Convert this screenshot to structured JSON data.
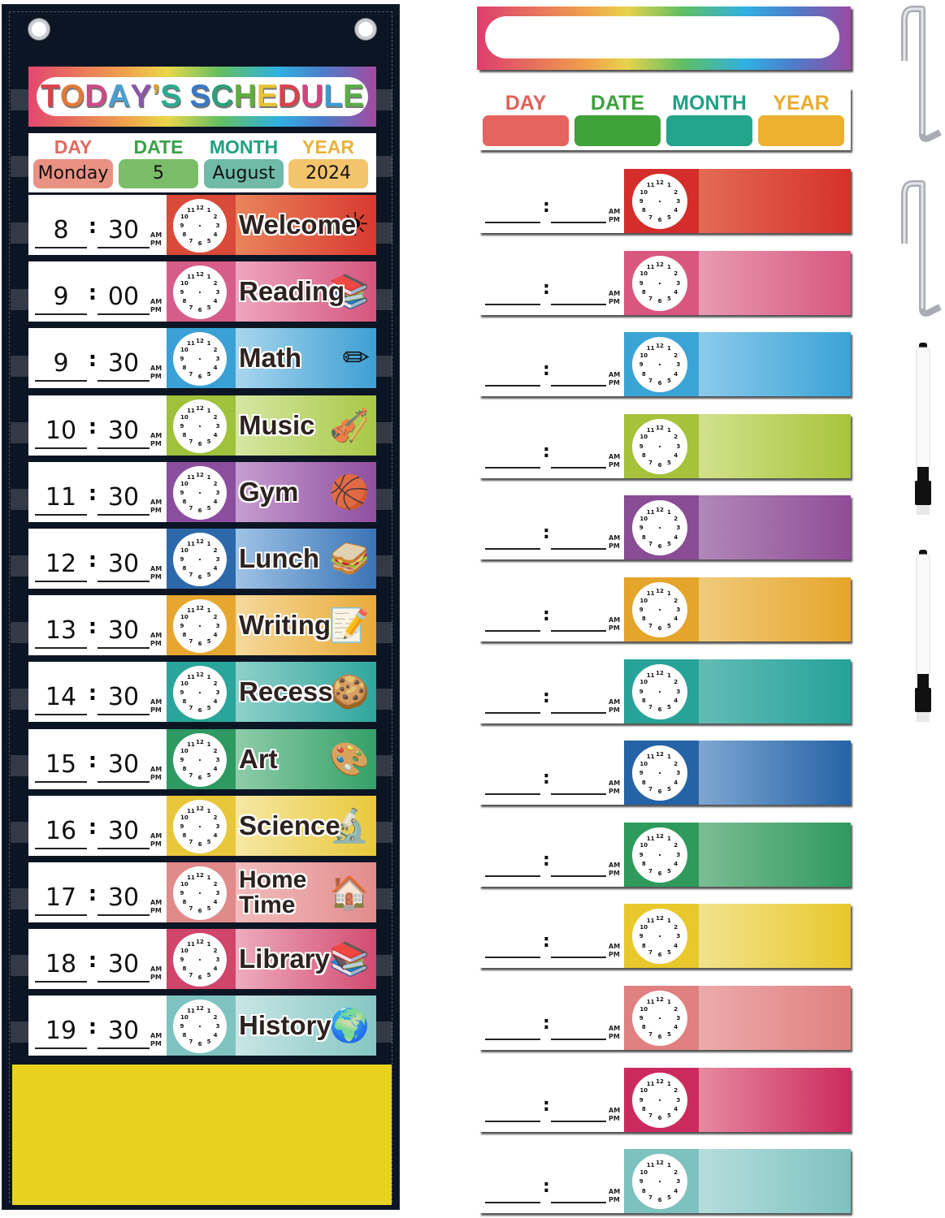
{
  "title_card": {
    "letters": [
      {
        "ch": "T",
        "color": "#d6434c"
      },
      {
        "ch": "O",
        "color": "#e07a3a"
      },
      {
        "ch": "D",
        "color": "#c94c86"
      },
      {
        "ch": "A",
        "color": "#4c9fcf"
      },
      {
        "ch": "Y",
        "color": "#8b56a5"
      },
      {
        "ch": "’",
        "color": "#d8a23a"
      },
      {
        "ch": "S",
        "color": "#2eaa8f"
      },
      {
        "ch": " ",
        "color": "#000"
      },
      {
        "ch": "S",
        "color": "#3b78c4"
      },
      {
        "ch": "C",
        "color": "#2e9d7b"
      },
      {
        "ch": "H",
        "color": "#5fae3b"
      },
      {
        "ch": "E",
        "color": "#e5c33a"
      },
      {
        "ch": "D",
        "color": "#d6434c"
      },
      {
        "ch": "U",
        "color": "#d0457f"
      },
      {
        "ch": "L",
        "color": "#3d9ad0"
      },
      {
        "ch": "E",
        "color": "#5aad4a"
      }
    ],
    "text": "TODAY'S SCHEDULE"
  },
  "date_card": {
    "columns": [
      {
        "label": "DAY",
        "value": "Monday",
        "label_color": "#e06a61",
        "box_color": "#e99182"
      },
      {
        "label": "DATE",
        "value": "5",
        "label_color": "#3aa04a",
        "box_color": "#7bbd69"
      },
      {
        "label": "MONTH",
        "value": "August",
        "label_color": "#21a083",
        "box_color": "#6fbba8"
      },
      {
        "label": "YEAR",
        "value": "2024",
        "label_color": "#eab23b",
        "box_color": "#f2c46b"
      }
    ]
  },
  "ampm": {
    "am": "AM",
    "pm": "PM"
  },
  "schedule": [
    {
      "hour": "8",
      "minute": "30",
      "activity": "Welcome",
      "clock_bg": "#d94a38",
      "grad_from": "#e9845c",
      "grad_to": "#d9392f",
      "icon": "☀"
    },
    {
      "hour": "9",
      "minute": "00",
      "activity": "Reading",
      "clock_bg": "#d65d8a",
      "grad_from": "#eea6bf",
      "grad_to": "#d4557e",
      "icon": "📚"
    },
    {
      "hour": "9",
      "minute": "30",
      "activity": "Math",
      "clock_bg": "#3aa1d6",
      "grad_from": "#a8d6ee",
      "grad_to": "#3e9fd3",
      "icon": "✏"
    },
    {
      "hour": "10",
      "minute": "30",
      "activity": "Music",
      "clock_bg": "#9fc13b",
      "grad_from": "#d6e7a3",
      "grad_to": "#a8c846",
      "icon": "🎻"
    },
    {
      "hour": "11",
      "minute": "30",
      "activity": "Gym",
      "clock_bg": "#8b4e9e",
      "grad_from": "#c69ed0",
      "grad_to": "#8f4f9f",
      "icon": "🏀"
    },
    {
      "hour": "12",
      "minute": "30",
      "activity": "Lunch",
      "clock_bg": "#2d69aa",
      "grad_from": "#9fc3e6",
      "grad_to": "#3a74b6",
      "icon": "🥪"
    },
    {
      "hour": "13",
      "minute": "30",
      "activity": "Writing",
      "clock_bg": "#e6a630",
      "grad_from": "#f6d99b",
      "grad_to": "#e8ab39",
      "icon": "📝"
    },
    {
      "hour": "14",
      "minute": "30",
      "activity": "Recess",
      "clock_bg": "#2aa59b",
      "grad_from": "#8fd0ca",
      "grad_to": "#2fa69d",
      "icon": "🍪"
    },
    {
      "hour": "15",
      "minute": "30",
      "activity": "Art",
      "clock_bg": "#2e9a62",
      "grad_from": "#8fcda9",
      "grad_to": "#34a068",
      "icon": "🎨"
    },
    {
      "hour": "16",
      "minute": "30",
      "activity": "Science",
      "clock_bg": "#e8c83a",
      "grad_from": "#f6e8a5",
      "grad_to": "#e8c83a",
      "icon": "🔬"
    },
    {
      "hour": "17",
      "minute": "30",
      "activity": "Home\nTime",
      "clock_bg": "#e08a8a",
      "grad_from": "#f2bcbc",
      "grad_to": "#e28c8c",
      "icon": "🏠"
    },
    {
      "hour": "18",
      "minute": "30",
      "activity": "Library",
      "clock_bg": "#d0456a",
      "grad_from": "#eeacbe",
      "grad_to": "#d24b70",
      "icon": "📚"
    },
    {
      "hour": "19",
      "minute": "30",
      "activity": "History",
      "clock_bg": "#7fc3c0",
      "grad_from": "#c8e6e5",
      "grad_to": "#86c6c3",
      "icon": "🌍"
    }
  ],
  "blank_date_card": {
    "columns": [
      {
        "label": "DAY",
        "label_color": "#e0625b",
        "box_color": "#e6645f"
      },
      {
        "label": "DATE",
        "label_color": "#3ea13e",
        "box_color": "#3ea33b"
      },
      {
        "label": "MONTH",
        "label_color": "#20a085",
        "box_color": "#22a58a"
      },
      {
        "label": "YEAR",
        "label_color": "#e8ad30",
        "box_color": "#edb131"
      }
    ]
  },
  "blank_strips": [
    {
      "clock_bg": "#d42d2a",
      "grad_from": "#e46a56",
      "grad_to": "#d63129"
    },
    {
      "clock_bg": "#d9567f",
      "grad_from": "#e99ab2",
      "grad_to": "#d75880"
    },
    {
      "clock_bg": "#3aa4d7",
      "grad_from": "#8bcbeb",
      "grad_to": "#3aa3d6"
    },
    {
      "clock_bg": "#a5c23a",
      "grad_from": "#d2e18c",
      "grad_to": "#a8c43b"
    },
    {
      "clock_bg": "#8a4c95",
      "grad_from": "#b088b8",
      "grad_to": "#904d97"
    },
    {
      "clock_bg": "#e5a42a",
      "grad_from": "#f0cb7c",
      "grad_to": "#e6a52b"
    },
    {
      "clock_bg": "#27a39a",
      "grad_from": "#63bcb5",
      "grad_to": "#25a29a"
    },
    {
      "clock_bg": "#2463a5",
      "grad_from": "#7ea7d2",
      "grad_to": "#2563a6"
    },
    {
      "clock_bg": "#2e9a5c",
      "grad_from": "#7cbd93",
      "grad_to": "#2f9a5e"
    },
    {
      "clock_bg": "#e8c82c",
      "grad_from": "#f2e38e",
      "grad_to": "#e8c82c"
    },
    {
      "clock_bg": "#e08080",
      "grad_from": "#ecaaaa",
      "grad_to": "#e08080"
    },
    {
      "clock_bg": "#cc2a5e",
      "grad_from": "#e8899f",
      "grad_to": "#cc2a5e"
    },
    {
      "clock_bg": "#7ec2c0",
      "grad_from": "#b6dddc",
      "grad_to": "#7ec2c0"
    }
  ],
  "clock_numbers": [
    "12",
    "1",
    "2",
    "3",
    "4",
    "5",
    "6",
    "7",
    "8",
    "9",
    "10",
    "11"
  ],
  "accessories": {
    "hooks": 2,
    "markers": 2
  }
}
